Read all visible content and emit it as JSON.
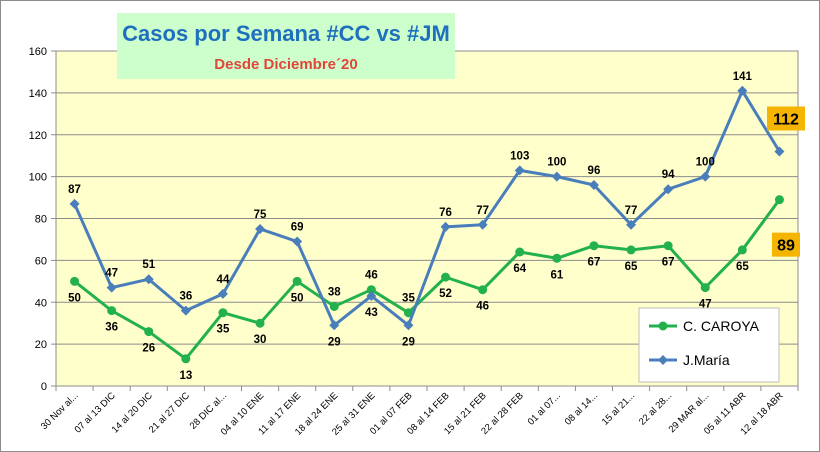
{
  "chart_data": {
    "type": "line",
    "title": "Casos por Semana #CC vs #JM",
    "subtitle": "Desde Diciembre´20",
    "categories": [
      "30 Nov al...",
      "07 al 13 DIC",
      "14 al 20 DIC",
      "21 al 27 DIC",
      "28 DIC al...",
      "04 al 10 ENE",
      "11 al 17 ENE",
      "18 al 24 ENE",
      "25 al 31 ENE",
      "01 al 07 FEB",
      "08 al 14 FEB",
      "15 al 21 FEB",
      "22 al 28 FEB",
      "01 al 07...",
      "08 al 14...",
      "15 al 21...",
      "22 al 28...",
      "29 MAR al...",
      "05 al 11 ABR",
      "12 al 18 ABR"
    ],
    "series": [
      {
        "name": "C. CAROYA",
        "color": "#22b14c",
        "values": [
          50,
          36,
          26,
          13,
          35,
          30,
          50,
          38,
          46,
          35,
          52,
          46,
          64,
          61,
          67,
          65,
          67,
          47,
          65,
          89
        ]
      },
      {
        "name": "J.María",
        "color": "#4a7ebb",
        "values": [
          87,
          47,
          51,
          36,
          44,
          75,
          69,
          29,
          43,
          29,
          76,
          77,
          103,
          100,
          96,
          77,
          94,
          100,
          141,
          112
        ]
      }
    ],
    "callouts": [
      {
        "series": "J.María",
        "text": "112",
        "bg": "#f5b400"
      },
      {
        "series": "C. CAROYA",
        "text": "89",
        "bg": "#f5b400"
      }
    ],
    "ylim": [
      0,
      160
    ],
    "yticks": [
      0,
      20,
      40,
      60,
      80,
      100,
      120,
      140,
      160
    ],
    "grid": true,
    "legend": "bottom-right",
    "plot_bg": "#ffffcc",
    "title_bg": "#ccffcc",
    "grid_color": "#8c8c8c"
  }
}
